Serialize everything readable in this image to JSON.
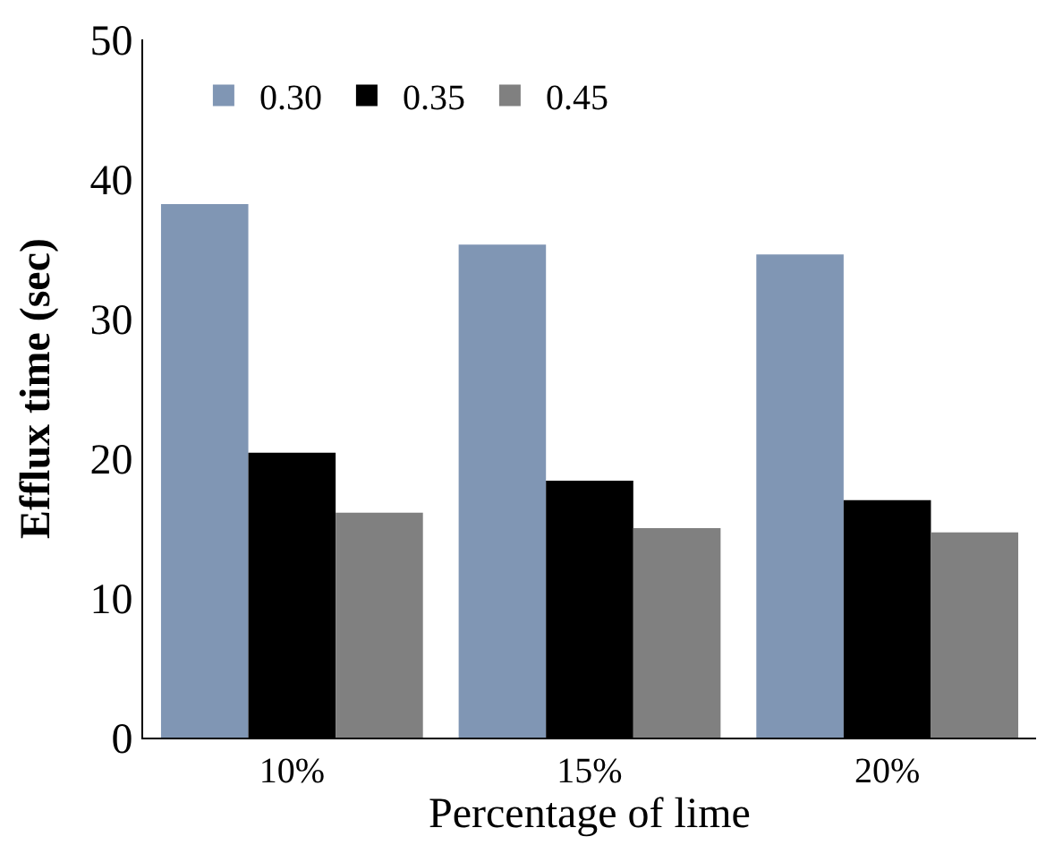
{
  "chart_data": {
    "type": "bar",
    "xlabel": "Percentage of lime",
    "ylabel": "Efflux time (sec)",
    "categories": [
      "10%",
      "15%",
      "20%"
    ],
    "series": [
      {
        "name": "0.30",
        "color": "#8096b4",
        "values": [
          38.2,
          35.3,
          34.6
        ]
      },
      {
        "name": "0.35",
        "color": "#000000",
        "values": [
          20.4,
          18.4,
          17.0
        ]
      },
      {
        "name": "0.45",
        "color": "#808080",
        "values": [
          16.1,
          15.0,
          14.7
        ]
      }
    ],
    "ylim": [
      0,
      50
    ],
    "yticks": [
      0,
      10,
      20,
      30,
      40,
      50
    ],
    "legend": "top left"
  }
}
